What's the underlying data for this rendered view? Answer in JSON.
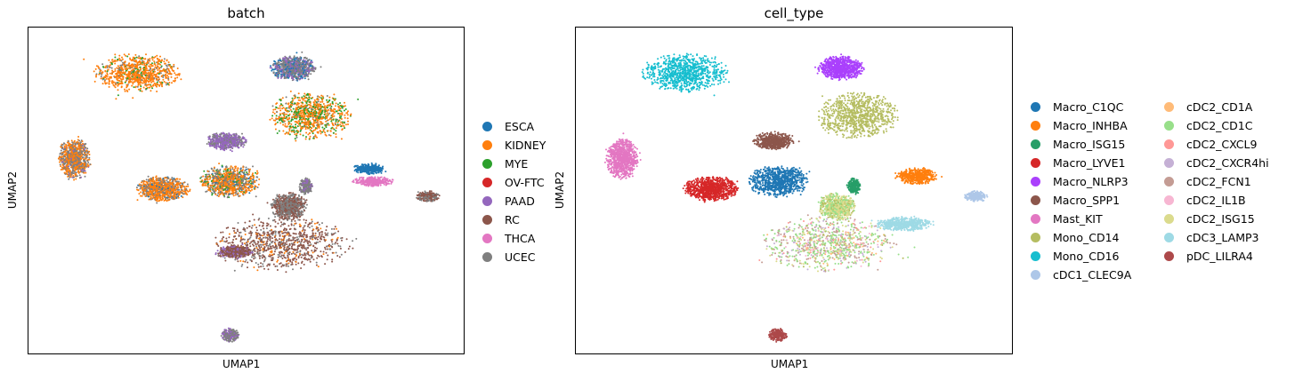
{
  "chart_data": [
    {
      "type": "scatter",
      "title": "batch",
      "xlabel": "UMAP1",
      "ylabel": "UMAP2",
      "grid": false,
      "legend_placement": "right",
      "series": [
        {
          "name": "ESCA",
          "color": "#1f77b4"
        },
        {
          "name": "KIDNEY",
          "color": "#ff7f0e"
        },
        {
          "name": "MYE",
          "color": "#2ca02c"
        },
        {
          "name": "OV-FTC",
          "color": "#d62728"
        },
        {
          "name": "PAAD",
          "color": "#9467bd"
        },
        {
          "name": "RC",
          "color": "#8c564b"
        },
        {
          "name": "THCA",
          "color": "#e377c2"
        },
        {
          "name": "UCEC",
          "color": "#7f7f7f"
        }
      ],
      "clusters": [
        {
          "x": 0.24,
          "y": 0.87,
          "rx": 0.095,
          "ry": 0.07,
          "mix": [
            [
              1,
              0.8
            ],
            [
              7,
              0.12
            ],
            [
              2,
              0.08
            ]
          ]
        },
        {
          "x": 0.61,
          "y": 0.89,
          "rx": 0.05,
          "ry": 0.045,
          "mix": [
            [
              7,
              0.5
            ],
            [
              4,
              0.25
            ],
            [
              0,
              0.25
            ]
          ]
        },
        {
          "x": 0.65,
          "y": 0.7,
          "rx": 0.09,
          "ry": 0.085,
          "mix": [
            [
              1,
              0.6
            ],
            [
              2,
              0.32
            ],
            [
              7,
              0.08
            ]
          ]
        },
        {
          "x": 0.45,
          "y": 0.6,
          "rx": 0.045,
          "ry": 0.032,
          "mix": [
            [
              4,
              0.6
            ],
            [
              7,
              0.4
            ]
          ]
        },
        {
          "x": 0.09,
          "y": 0.53,
          "rx": 0.035,
          "ry": 0.075,
          "mix": [
            [
              1,
              0.5
            ],
            [
              7,
              0.45
            ],
            [
              4,
              0.05
            ]
          ]
        },
        {
          "x": 0.3,
          "y": 0.41,
          "rx": 0.06,
          "ry": 0.045,
          "mix": [
            [
              1,
              0.65
            ],
            [
              7,
              0.3
            ],
            [
              0,
              0.05
            ]
          ]
        },
        {
          "x": 0.46,
          "y": 0.44,
          "rx": 0.065,
          "ry": 0.06,
          "mix": [
            [
              1,
              0.55
            ],
            [
              7,
              0.3
            ],
            [
              2,
              0.1
            ],
            [
              0,
              0.05
            ]
          ]
        },
        {
          "x": 0.79,
          "y": 0.49,
          "rx": 0.035,
          "ry": 0.02,
          "mix": [
            [
              0,
              1.0
            ]
          ]
        },
        {
          "x": 0.8,
          "y": 0.44,
          "rx": 0.045,
          "ry": 0.018,
          "mix": [
            [
              6,
              1.0
            ]
          ]
        },
        {
          "x": 0.93,
          "y": 0.38,
          "rx": 0.025,
          "ry": 0.02,
          "mix": [
            [
              5,
              0.6
            ],
            [
              7,
              0.4
            ]
          ]
        },
        {
          "x": 0.64,
          "y": 0.42,
          "rx": 0.015,
          "ry": 0.03,
          "mix": [
            [
              7,
              0.7
            ],
            [
              4,
              0.3
            ]
          ]
        },
        {
          "x": 0.58,
          "y": 0.19,
          "rx": 0.15,
          "ry": 0.1,
          "mix": [
            [
              5,
              0.7
            ],
            [
              7,
              0.2
            ],
            [
              1,
              0.1
            ]
          ]
        },
        {
          "x": 0.6,
          "y": 0.34,
          "rx": 0.04,
          "ry": 0.05,
          "mix": [
            [
              5,
              0.5
            ],
            [
              7,
              0.5
            ]
          ]
        },
        {
          "x": 0.47,
          "y": 0.16,
          "rx": 0.04,
          "ry": 0.025,
          "mix": [
            [
              5,
              0.7
            ],
            [
              4,
              0.3
            ]
          ]
        },
        {
          "x": 0.46,
          "y": -0.17,
          "rx": 0.02,
          "ry": 0.025,
          "mix": [
            [
              7,
              0.6
            ],
            [
              4,
              0.4
            ]
          ]
        }
      ]
    },
    {
      "type": "scatter",
      "title": "cell_type",
      "xlabel": "UMAP1",
      "ylabel": "UMAP2",
      "grid": false,
      "legend_placement": "right",
      "series": [
        {
          "name": "Macro_C1QC",
          "color": "#1f77b4"
        },
        {
          "name": "Macro_INHBA",
          "color": "#ff7f0e"
        },
        {
          "name": "Macro_ISG15",
          "color": "#279e68"
        },
        {
          "name": "Macro_LYVE1",
          "color": "#d62728"
        },
        {
          "name": "Macro_NLRP3",
          "color": "#aa40fc"
        },
        {
          "name": "Macro_SPP1",
          "color": "#8c564b"
        },
        {
          "name": "Mast_KIT",
          "color": "#e377c2"
        },
        {
          "name": "Mono_CD14",
          "color": "#b5bd61"
        },
        {
          "name": "Mono_CD16",
          "color": "#17becf"
        },
        {
          "name": "cDC1_CLEC9A",
          "color": "#aec7e8"
        },
        {
          "name": "cDC2_CD1A",
          "color": "#ffbb78"
        },
        {
          "name": "cDC2_CD1C",
          "color": "#98df8a"
        },
        {
          "name": "cDC2_CXCL9",
          "color": "#ff9896"
        },
        {
          "name": "cDC2_CXCR4hi",
          "color": "#c5b0d5"
        },
        {
          "name": "cDC2_FCN1",
          "color": "#c49c94"
        },
        {
          "name": "cDC2_IL1B",
          "color": "#f7b6d2"
        },
        {
          "name": "cDC2_ISG15",
          "color": "#dbdb8d"
        },
        {
          "name": "cDC3_LAMP3",
          "color": "#9edae5"
        },
        {
          "name": "pDC_LILRA4",
          "color": "#ad494a"
        }
      ],
      "clusters": [
        {
          "x": 0.24,
          "y": 0.87,
          "rx": 0.095,
          "ry": 0.07,
          "mix": [
            [
              8,
              1.0
            ]
          ]
        },
        {
          "x": 0.61,
          "y": 0.89,
          "rx": 0.05,
          "ry": 0.045,
          "mix": [
            [
              4,
              1.0
            ]
          ]
        },
        {
          "x": 0.65,
          "y": 0.7,
          "rx": 0.09,
          "ry": 0.085,
          "mix": [
            [
              7,
              1.0
            ]
          ]
        },
        {
          "x": 0.45,
          "y": 0.6,
          "rx": 0.045,
          "ry": 0.032,
          "mix": [
            [
              5,
              1.0
            ]
          ]
        },
        {
          "x": 0.09,
          "y": 0.53,
          "rx": 0.035,
          "ry": 0.075,
          "mix": [
            [
              6,
              1.0
            ]
          ]
        },
        {
          "x": 0.3,
          "y": 0.41,
          "rx": 0.06,
          "ry": 0.045,
          "mix": [
            [
              3,
              1.0
            ]
          ]
        },
        {
          "x": 0.46,
          "y": 0.44,
          "rx": 0.065,
          "ry": 0.06,
          "mix": [
            [
              0,
              1.0
            ]
          ]
        },
        {
          "x": 0.79,
          "y": 0.46,
          "rx": 0.045,
          "ry": 0.03,
          "mix": [
            [
              1,
              1.0
            ]
          ]
        },
        {
          "x": 0.64,
          "y": 0.42,
          "rx": 0.015,
          "ry": 0.03,
          "mix": [
            [
              2,
              1.0
            ]
          ]
        },
        {
          "x": 0.93,
          "y": 0.38,
          "rx": 0.025,
          "ry": 0.02,
          "mix": [
            [
              9,
              1.0
            ]
          ]
        },
        {
          "x": 0.58,
          "y": 0.19,
          "rx": 0.15,
          "ry": 0.1,
          "mix": [
            [
              11,
              0.35
            ],
            [
              14,
              0.2
            ],
            [
              16,
              0.15
            ],
            [
              13,
              0.1
            ],
            [
              12,
              0.05
            ],
            [
              15,
              0.05
            ],
            [
              10,
              0.05
            ],
            [
              7,
              0.05
            ]
          ]
        },
        {
          "x": 0.6,
          "y": 0.34,
          "rx": 0.04,
          "ry": 0.05,
          "mix": [
            [
              16,
              0.5
            ],
            [
              11,
              0.3
            ],
            [
              7,
              0.2
            ]
          ]
        },
        {
          "x": 0.76,
          "y": 0.27,
          "rx": 0.06,
          "ry": 0.025,
          "mix": [
            [
              17,
              1.0
            ]
          ]
        },
        {
          "x": 0.46,
          "y": -0.17,
          "rx": 0.02,
          "ry": 0.025,
          "mix": [
            [
              18,
              1.0
            ]
          ]
        }
      ]
    }
  ]
}
